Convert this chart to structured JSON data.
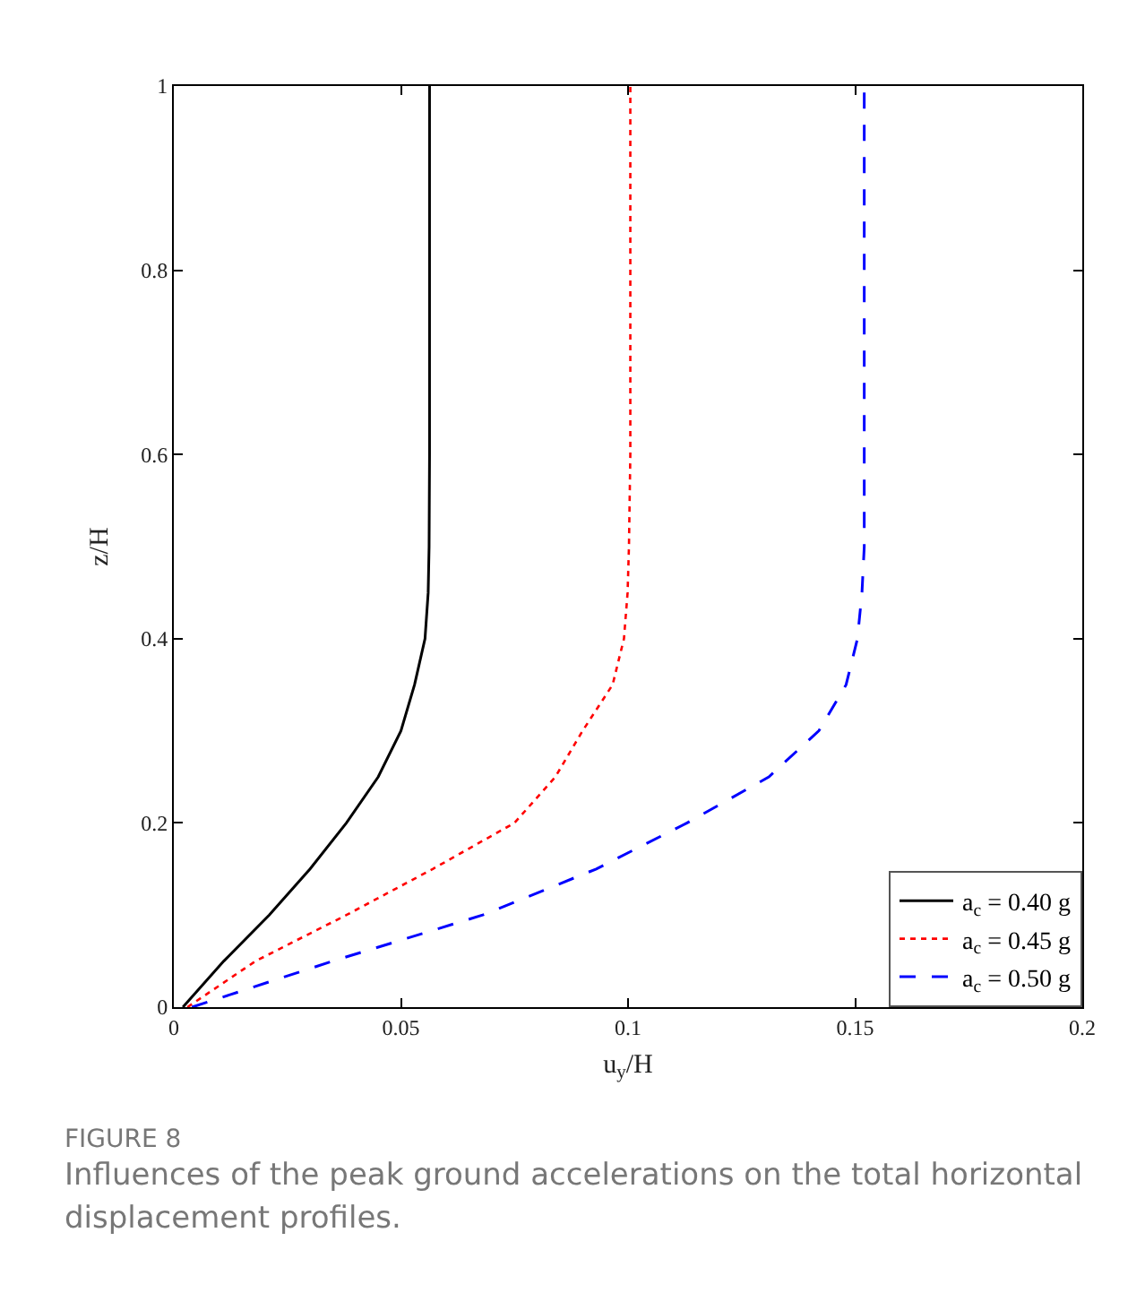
{
  "chart_data": {
    "type": "line",
    "xlabel": "u$_{y}$/H",
    "ylabel": "z/H",
    "series": [
      {
        "name": "a$_{c}$ = 0.40 g",
        "color": "#000000",
        "line_style": "solid",
        "x": [
          0.002,
          0.011,
          0.021,
          0.03,
          0.038,
          0.045,
          0.05,
          0.053,
          0.0553,
          0.056,
          0.0562,
          0.0563,
          0.0563
        ],
        "values": [
          0,
          0.05,
          0.1,
          0.15,
          0.2,
          0.25,
          0.3,
          0.35,
          0.4,
          0.45,
          0.5,
          0.6,
          1
        ]
      },
      {
        "name": "a$_{c}$ = 0.45 g",
        "color": "#ff0000",
        "line_style": "dotted",
        "x": [
          0.003,
          0.018,
          0.038,
          0.057,
          0.075,
          0.084,
          0.09,
          0.0966,
          0.0991,
          0.0999,
          0.1002,
          0.1005,
          0.1005
        ],
        "values": [
          0,
          0.05,
          0.1,
          0.15,
          0.2,
          0.25,
          0.3,
          0.35,
          0.4,
          0.45,
          0.5,
          0.6,
          1
        ]
      },
      {
        "name": "a$_{c}$ = 0.50 g",
        "color": "#0000ff",
        "line_style": "dashed",
        "x": [
          0.004,
          0.035,
          0.068,
          0.093,
          0.113,
          0.131,
          0.142,
          0.148,
          0.1505,
          0.1515,
          0.152,
          0.152,
          0.152
        ],
        "values": [
          0,
          0.05,
          0.1,
          0.15,
          0.2,
          0.25,
          0.3,
          0.35,
          0.4,
          0.45,
          0.5,
          0.6,
          1
        ]
      }
    ],
    "xlim": [
      0,
      0.2
    ],
    "xticks": [
      0,
      0.05,
      0.1,
      0.15,
      0.2
    ],
    "ylim": [
      0,
      1
    ],
    "yticks": [
      0,
      0.2,
      0.4,
      0.6,
      0.8,
      1
    ],
    "grid": false,
    "legend": "bottom right",
    "marker": "none",
    "annotations": [
      "FIGURE 8",
      "Influences of the peak ground accelerations on the total horizontal displacement profiles."
    ]
  }
}
